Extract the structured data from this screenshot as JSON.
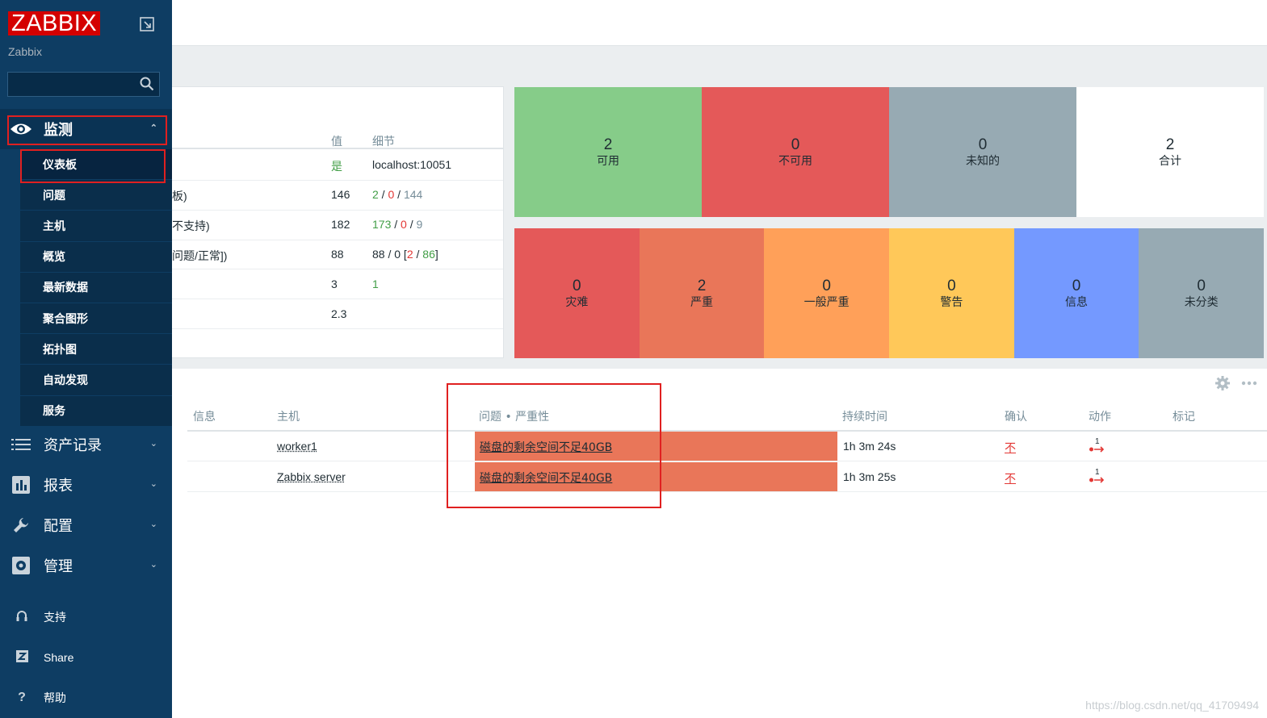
{
  "sidebar": {
    "logo": "ZABBIX",
    "server_name": "Zabbix",
    "search_placeholder": "",
    "monitoring": {
      "label": "监测",
      "items": [
        "仪表板",
        "问题",
        "主机",
        "概览",
        "最新数据",
        "聚合图形",
        "拓扑图",
        "自动发现",
        "服务"
      ]
    },
    "sections": [
      "资产记录",
      "报表",
      "配置",
      "管理"
    ],
    "footer": [
      "支持",
      "Share",
      "帮助"
    ]
  },
  "system_info": {
    "headers": {
      "value": "值",
      "details": "细节"
    },
    "rows": [
      {
        "param": "",
        "value": "是",
        "details": "localhost:10051"
      },
      {
        "param": "板)",
        "value": "146",
        "d1": "2",
        "d2": "0",
        "d3": "144"
      },
      {
        "param": "不支持)",
        "value": "182",
        "d1": "173",
        "d2": "0",
        "d3": "9"
      },
      {
        "param": "问题/正常])",
        "value": "88",
        "d_prefix": "88 / 0 [",
        "d2": "2",
        "d3": "86",
        "d_suffix": "]"
      },
      {
        "param": "",
        "value": "3",
        "d1": "1"
      },
      {
        "param": "",
        "value": "2.3"
      }
    ]
  },
  "host_availability": [
    {
      "count": "2",
      "label": "可用",
      "color": "#86cc89"
    },
    {
      "count": "0",
      "label": "不可用",
      "color": "#e45959"
    },
    {
      "count": "0",
      "label": "未知的",
      "color": "#97aab3"
    },
    {
      "count": "2",
      "label": "合计",
      "color": "#ffffff"
    }
  ],
  "severity": [
    {
      "count": "0",
      "label": "灾难",
      "color": "#e45959"
    },
    {
      "count": "2",
      "label": "严重",
      "color": "#e97659"
    },
    {
      "count": "0",
      "label": "一般严重",
      "color": "#ffa059"
    },
    {
      "count": "0",
      "label": "警告",
      "color": "#ffc859"
    },
    {
      "count": "0",
      "label": "信息",
      "color": "#7499ff"
    },
    {
      "count": "0",
      "label": "未分类",
      "color": "#97aab3"
    }
  ],
  "problems": {
    "headers": {
      "info": "信息",
      "host": "主机",
      "problem": "问题 • 严重性",
      "duration": "持续时间",
      "ack": "确认",
      "actions": "动作",
      "tags": "标记"
    },
    "rows": [
      {
        "host": "worker1",
        "problem": "磁盘的剩余空间不足40GB",
        "duration": "1h 3m 24s",
        "ack": "不",
        "actions": "1"
      },
      {
        "host": "Zabbix server",
        "problem": "磁盘的剩余空间不足40GB",
        "duration": "1h 3m 25s",
        "ack": "不",
        "actions": "1"
      }
    ]
  },
  "watermark": "https://blog.csdn.net/qq_41709494"
}
